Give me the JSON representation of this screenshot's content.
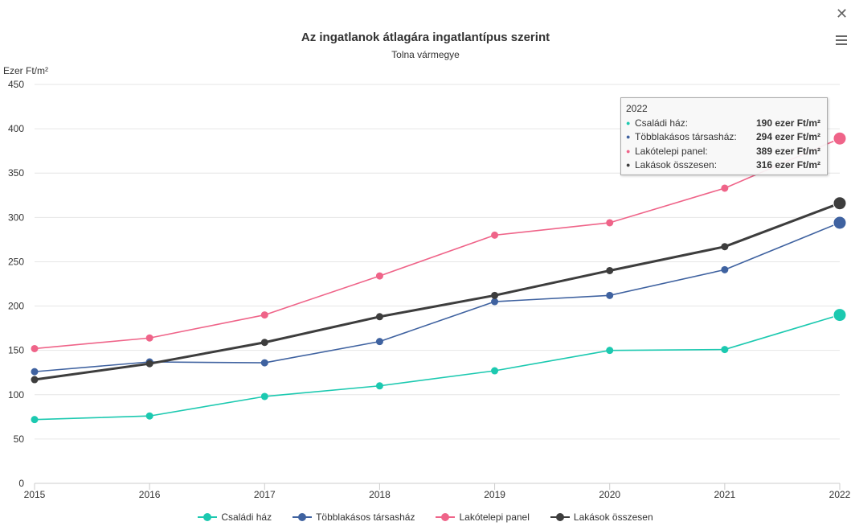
{
  "header": {
    "title": "Az ingatlanok átlagára ingatlantípus szerint",
    "subtitle": "Tolna vármegye",
    "close_icon": "close-icon",
    "menu_icon": "hamburger-menu-icon",
    "close_glyph": "✕"
  },
  "chart_data": {
    "type": "line",
    "title": "Az ingatlanok átlagára ingatlantípus szerint",
    "subtitle": "Tolna vármegye",
    "ylabel": "Ezer Ft/m²",
    "xlabel": "",
    "x": [
      "2015",
      "2016",
      "2017",
      "2018",
      "2019",
      "2020",
      "2021",
      "2022"
    ],
    "ylim": [
      0,
      450
    ],
    "yticks": [
      "0",
      "50",
      "100",
      "150",
      "200",
      "250",
      "300",
      "350",
      "400",
      "450"
    ],
    "grid": true,
    "legend_position": "bottom",
    "series": [
      {
        "name": "Családi ház",
        "color": "#1cc9b0",
        "values": [
          72,
          76,
          98,
          110,
          127,
          150,
          151,
          190
        ]
      },
      {
        "name": "Többlakásos társasház",
        "color": "#3f62a0",
        "values": [
          126,
          137,
          136,
          160,
          205,
          212,
          241,
          294
        ]
      },
      {
        "name": "Lakótelepi panel",
        "color": "#ef6489",
        "values": [
          152,
          164,
          190,
          234,
          280,
          294,
          333,
          389
        ]
      },
      {
        "name": "Lakások összesen",
        "color": "#3d3d3d",
        "values": [
          117,
          135,
          159,
          188,
          212,
          240,
          267,
          316
        ]
      }
    ]
  },
  "tooltip": {
    "header": "2022",
    "dot_glyph": "●",
    "rows": [
      {
        "name": "Családi ház:",
        "value": "190 ezer Ft/m²",
        "color": "#1cc9b0"
      },
      {
        "name": "Többlakásos társasház:",
        "value": "294 ezer Ft/m²",
        "color": "#3f62a0"
      },
      {
        "name": "Lakótelepi panel:",
        "value": "389 ezer Ft/m²",
        "color": "#ef6489"
      },
      {
        "name": "Lakások összesen:",
        "value": "316 ezer Ft/m²",
        "color": "#3d3d3d"
      }
    ]
  },
  "legend": {
    "items": [
      {
        "label": "Családi ház",
        "color": "#1cc9b0"
      },
      {
        "label": "Többlakásos társasház",
        "color": "#3f62a0"
      },
      {
        "label": "Lakótelepi panel",
        "color": "#ef6489"
      },
      {
        "label": "Lakások összesen",
        "color": "#3d3d3d"
      }
    ]
  },
  "hovered_category": "2022"
}
